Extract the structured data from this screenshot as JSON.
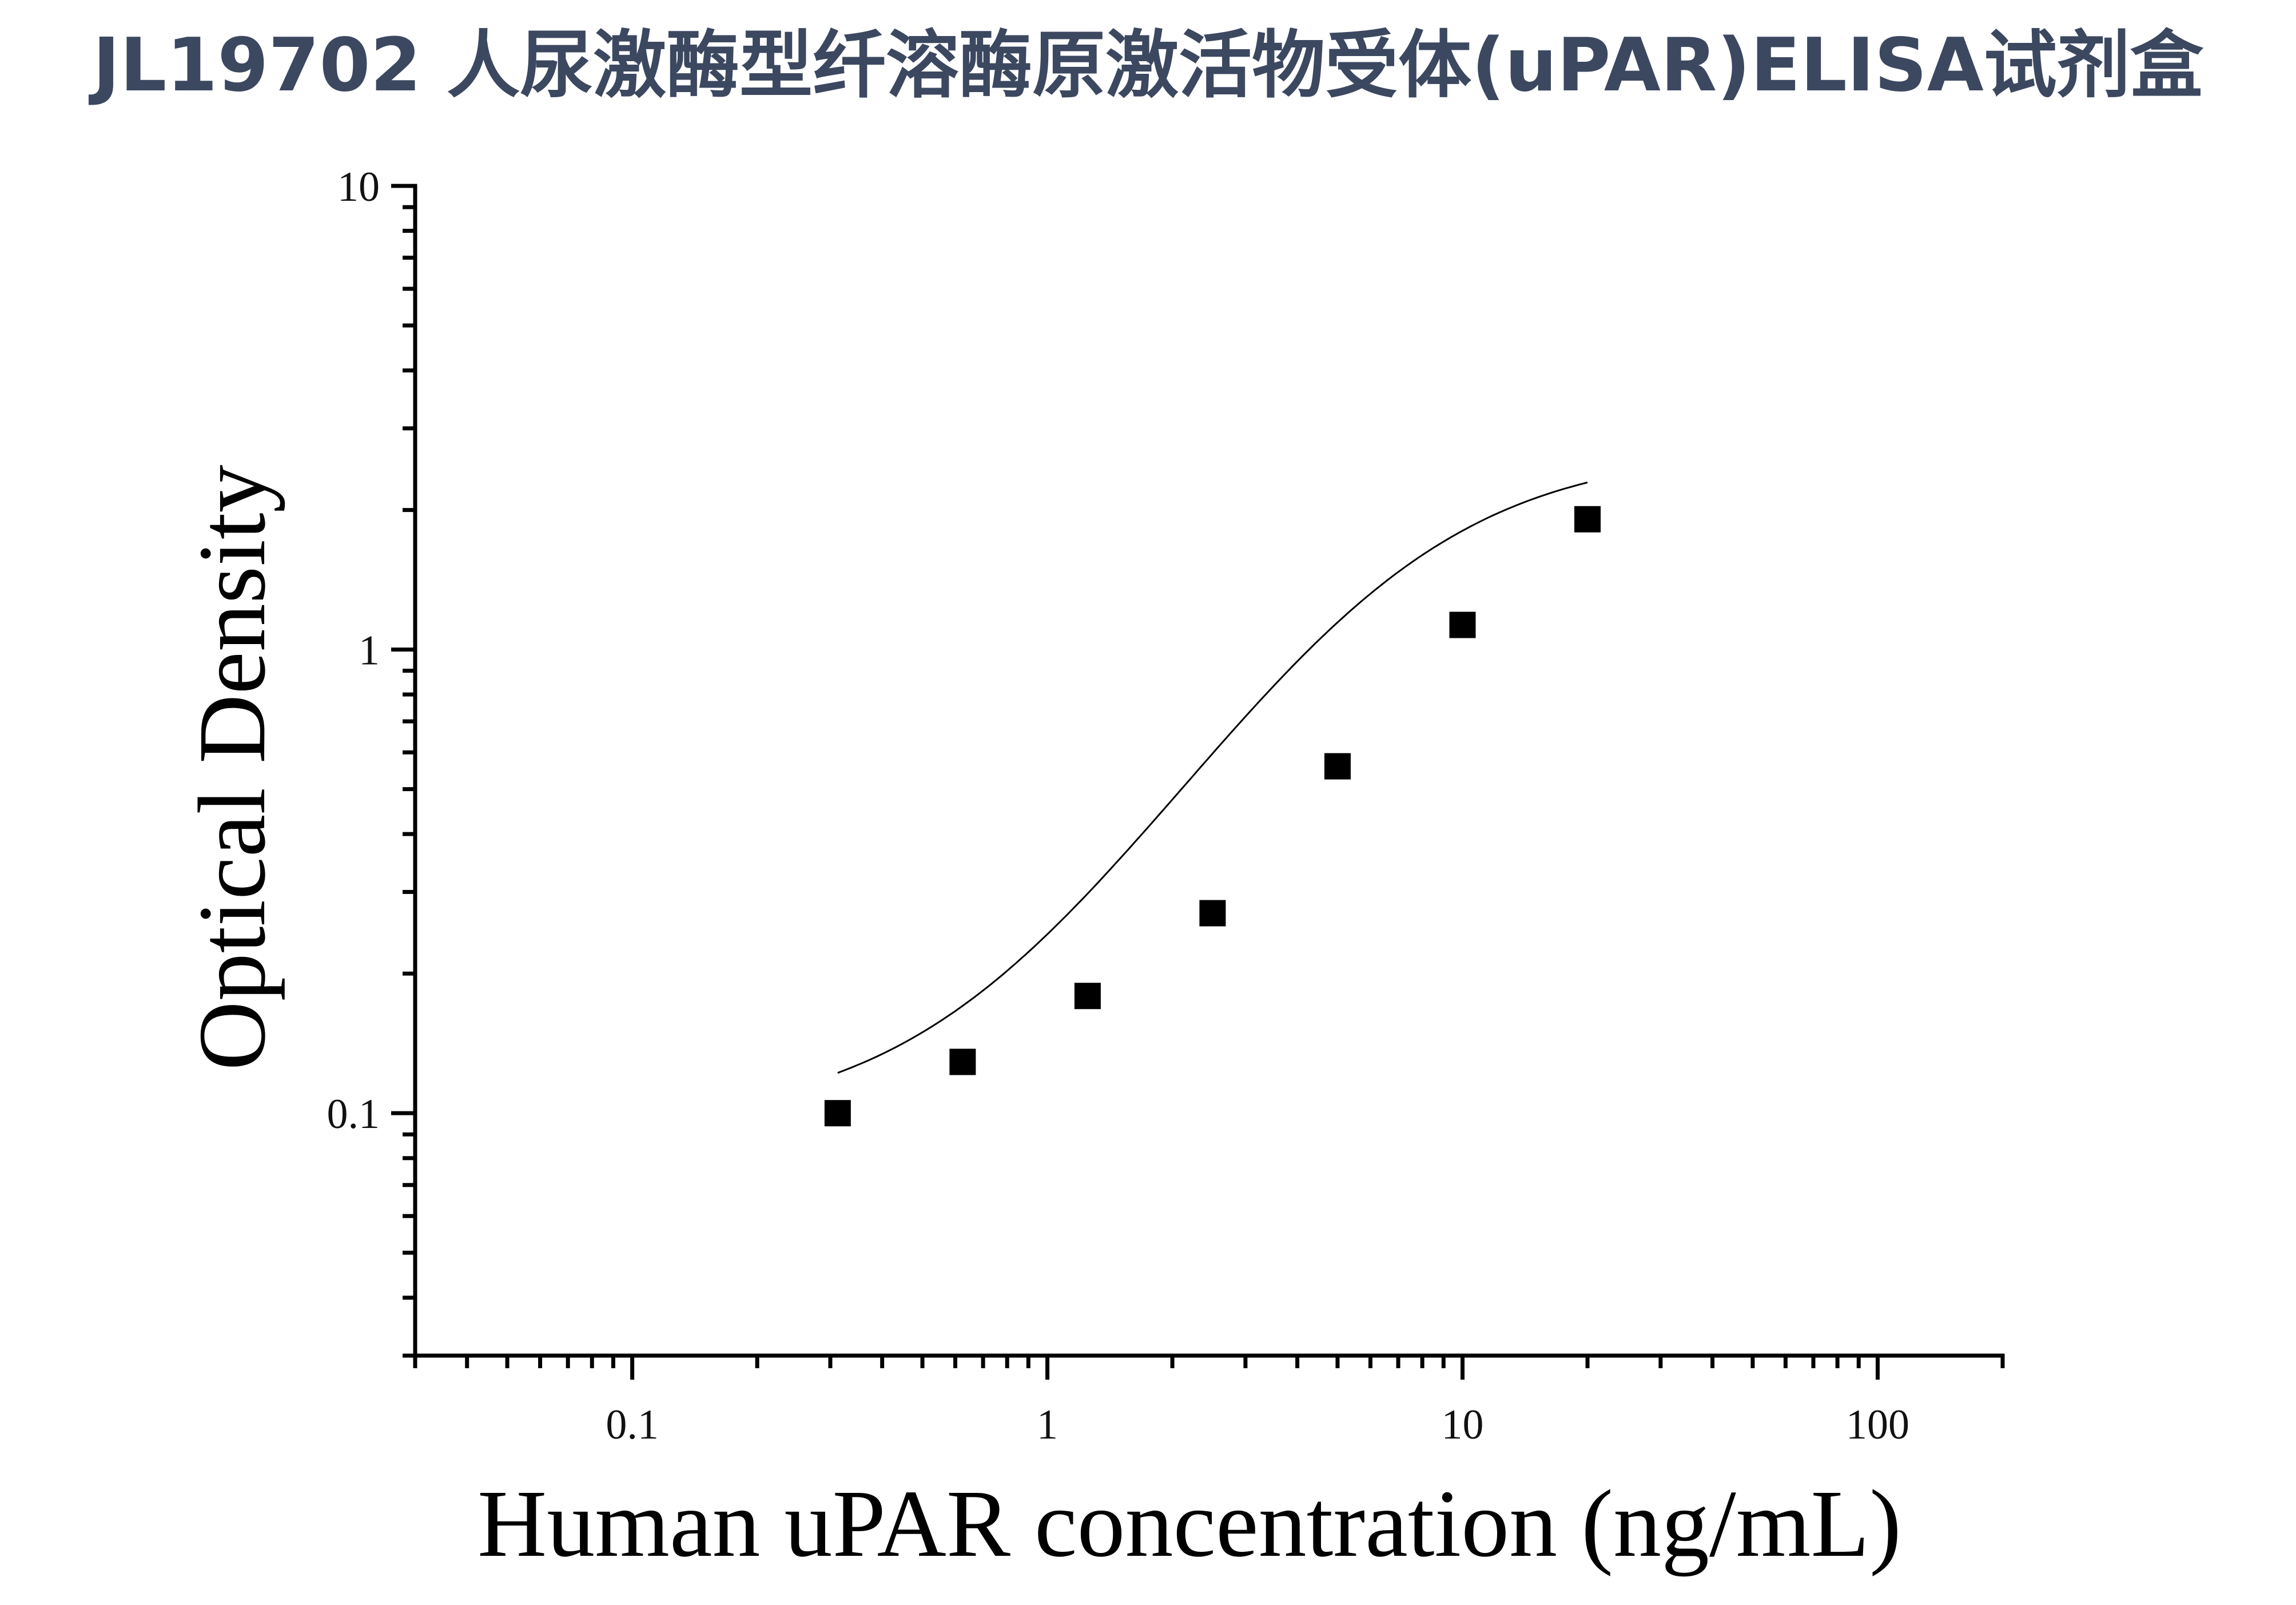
{
  "chart_data": {
    "type": "scatter",
    "title": "JL19702 人尿激酶型纤溶酶原激活物受体(uPAR)ELISA试剂盒",
    "xlabel": "Human uPAR concentration (ng/mL)",
    "ylabel": "Optical Density",
    "xscale": "log",
    "yscale": "log",
    "xlim": [
      0.03,
      200
    ],
    "ylim": [
      0.03,
      10
    ],
    "xticks": [
      {
        "value": 0.1,
        "label": "0.1"
      },
      {
        "value": 1,
        "label": "1"
      },
      {
        "value": 10,
        "label": "10"
      },
      {
        "value": 100,
        "label": "100"
      }
    ],
    "yticks": [
      {
        "value": 0.1,
        "label": "0.1"
      },
      {
        "value": 1,
        "label": "1"
      },
      {
        "value": 10,
        "label": "10"
      }
    ],
    "grid": false,
    "legend": "none",
    "series": [
      {
        "marker": "square",
        "color": "#000000",
        "points": [
          {
            "x": 0.3125,
            "y": 0.1
          },
          {
            "x": 0.625,
            "y": 0.129
          },
          {
            "x": 1.25,
            "y": 0.179
          },
          {
            "x": 2.5,
            "y": 0.27
          },
          {
            "x": 5,
            "y": 0.56
          },
          {
            "x": 10,
            "y": 1.13
          },
          {
            "x": 20,
            "y": 1.91
          }
        ]
      }
    ],
    "fit_curve": {
      "type": "4PL",
      "color": "#000000",
      "x_range": [
        0.3125,
        20
      ],
      "params": {
        "A": 0.095,
        "D": 2.7,
        "C": 6.5,
        "B": 1.5
      }
    }
  }
}
